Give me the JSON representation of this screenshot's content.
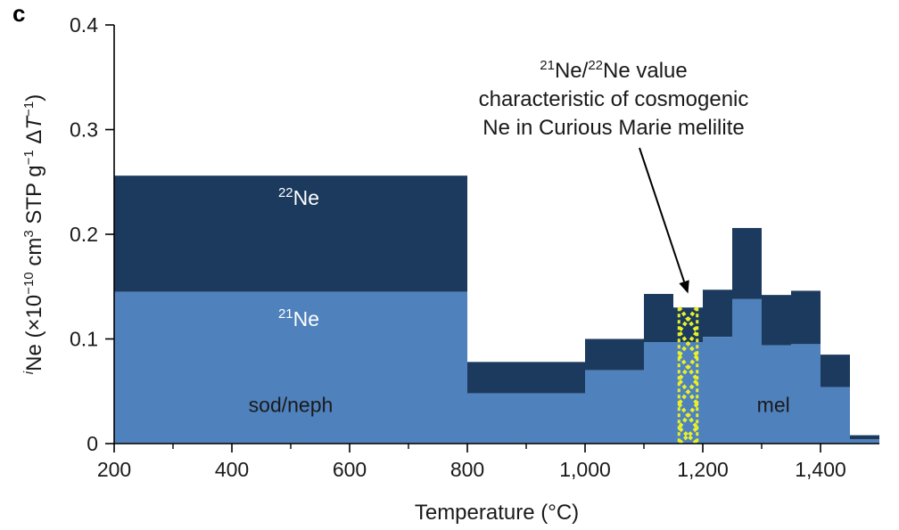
{
  "panel_letter": "c",
  "chart_data": {
    "type": "area",
    "title": "",
    "xlabel": "Temperature (°C)",
    "ylabel": {
      "italic_sup": "i",
      "base": "Ne (×10",
      "exp1": "−10",
      "mid1": " cm",
      "exp2": "3",
      "mid2": " STP g",
      "exp3": "−1",
      "mid3": " Δ",
      "italic": "T",
      "exp4": "−1",
      "end": ")"
    },
    "xlim": [
      200,
      1500
    ],
    "ylim": [
      0,
      0.4
    ],
    "x_ticks": [
      200,
      400,
      600,
      800,
      1000,
      1200,
      1400
    ],
    "x_tick_labels": [
      "200",
      "400",
      "600",
      "800",
      "1,000",
      "1,200",
      "1,400"
    ],
    "x_minor_ticks": [
      300,
      500,
      700,
      900,
      1100,
      1300
    ],
    "y_ticks": [
      0,
      0.1,
      0.2,
      0.3,
      0.4
    ],
    "y_tick_labels": [
      "0",
      "0.1",
      "0.2",
      "0.3",
      "0.4"
    ],
    "steps": [
      {
        "x0": 200,
        "x1": 800,
        "ne21": 0.145,
        "ne22": 0.256
      },
      {
        "x0": 800,
        "x1": 1000,
        "ne21": 0.048,
        "ne22": 0.078
      },
      {
        "x0": 1000,
        "x1": 1100,
        "ne21": 0.07,
        "ne22": 0.1
      },
      {
        "x0": 1100,
        "x1": 1150,
        "ne21": 0.097,
        "ne22": 0.143
      },
      {
        "x0": 1150,
        "x1": 1200,
        "ne21": 0.097,
        "ne22": 0.13
      },
      {
        "x0": 1200,
        "x1": 1250,
        "ne21": 0.102,
        "ne22": 0.147
      },
      {
        "x0": 1250,
        "x1": 1300,
        "ne21": 0.138,
        "ne22": 0.206
      },
      {
        "x0": 1300,
        "x1": 1350,
        "ne21": 0.094,
        "ne22": 0.142
      },
      {
        "x0": 1350,
        "x1": 1400,
        "ne21": 0.095,
        "ne22": 0.146
      },
      {
        "x0": 1400,
        "x1": 1450,
        "ne21": 0.054,
        "ne22": 0.085
      },
      {
        "x0": 1450,
        "x1": 1500,
        "ne21": 0.004,
        "ne22": 0.008
      }
    ],
    "series": [
      {
        "name": "21Ne",
        "sup": "21",
        "text": "Ne",
        "color": "#4f81bd"
      },
      {
        "name": "22Ne",
        "sup": "22",
        "text": "Ne",
        "color": "#1b3a5e"
      }
    ],
    "highlight_band": {
      "x0": 1150,
      "x1": 1200,
      "y_top": 0.13,
      "color": "#e8f02a"
    },
    "region_labels": [
      {
        "text": "sod/neph",
        "x": 500,
        "y": 0.025
      },
      {
        "text": "mel",
        "x": 1320,
        "y": 0.025
      }
    ],
    "annotation": {
      "line1_sup1": "21",
      "line1_mid": "Ne/",
      "line1_sup2": "22",
      "line1_end": "Ne value",
      "line2": "characteristic of cosmogenic",
      "line3": "Ne in Curious Marie melilite",
      "arrow_target_x": 1175,
      "arrow_target_y": 0.14
    }
  }
}
